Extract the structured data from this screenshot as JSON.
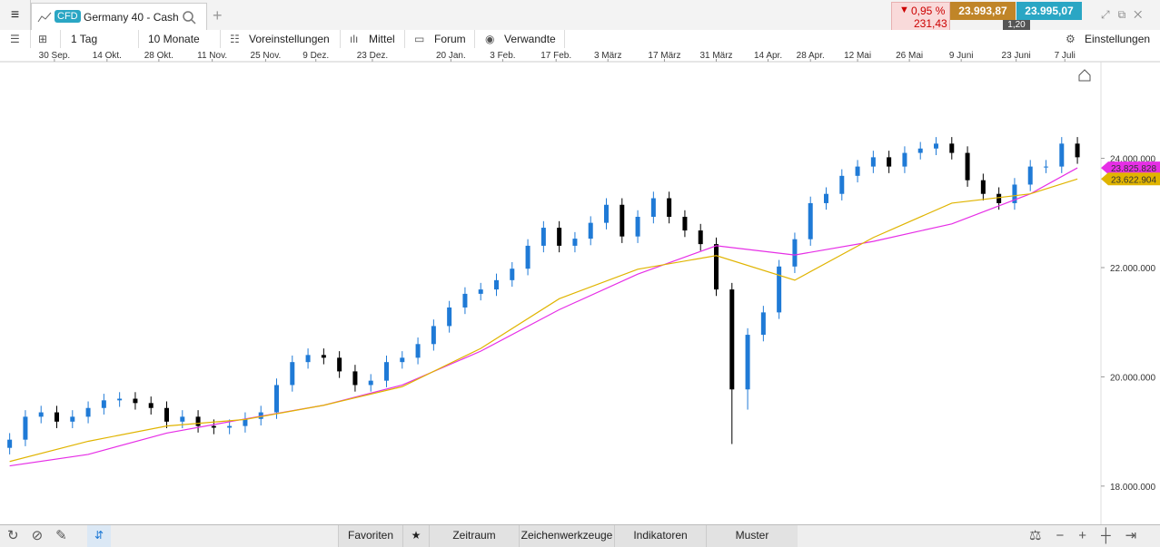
{
  "header": {
    "badge": "CFD",
    "instrument": "Germany 40 - Cash",
    "change_pct": "0,95 %",
    "change_abs": "231,43",
    "bid": "23.993,87",
    "ask": "23.995,07",
    "spread": "1,20"
  },
  "toolbar": {
    "interval": "1 Tag",
    "range": "10 Monate",
    "presets": "Voreinstellungen",
    "average": "Mittel",
    "forum": "Forum",
    "related": "Verwandte",
    "settings": "Einstellungen"
  },
  "footer": {
    "favorites": "Favoriten",
    "period": "Zeitraum",
    "drawing_tools": "Zeichenwerkzeuge",
    "indicators": "Indikatoren",
    "patterns": "Muster"
  },
  "chart_data": {
    "type": "candlestick",
    "up_color": "#1f7ad6",
    "down_color": "#000000",
    "grid": false,
    "xlim": [
      -0.5,
      69.5
    ],
    "xticks": [
      {
        "value": 2.85,
        "label": "30 Sep."
      },
      {
        "value": 6.2,
        "label": "14 Okt."
      },
      {
        "value": 9.5,
        "label": "28 Okt."
      },
      {
        "value": 12.9,
        "label": "11 Nov."
      },
      {
        "value": 16.3,
        "label": "25 Nov."
      },
      {
        "value": 19.5,
        "label": "9 Dez."
      },
      {
        "value": 23.1,
        "label": "23 Dez."
      },
      {
        "value": 28.1,
        "label": "20 Jan."
      },
      {
        "value": 31.4,
        "label": "3 Feb."
      },
      {
        "value": 34.8,
        "label": "17 Feb."
      },
      {
        "value": 38.1,
        "label": "3 März"
      },
      {
        "value": 41.7,
        "label": "17 März"
      },
      {
        "value": 45.0,
        "label": "31 März"
      },
      {
        "value": 48.3,
        "label": "14 Apr."
      },
      {
        "value": 51.0,
        "label": "28 Apr."
      },
      {
        "value": 54.0,
        "label": "12 Mai"
      },
      {
        "value": 57.3,
        "label": "26 Mai"
      },
      {
        "value": 60.6,
        "label": "9 Juni"
      },
      {
        "value": 64.1,
        "label": "23 Juni"
      },
      {
        "value": 67.2,
        "label": "7 Juli"
      }
    ],
    "ylim": [
      17300000,
      25770000
    ],
    "yticks": [
      {
        "value": 18000000,
        "label": "18.000.000"
      },
      {
        "value": 20000000,
        "label": "20.000.000"
      },
      {
        "value": 22000000,
        "label": "22.000.000"
      },
      {
        "value": 24000000,
        "label": "24.000.000"
      }
    ],
    "open": [
      18700000,
      18850000,
      19270000,
      19350000,
      19180000,
      19270000,
      19430000,
      19570000,
      19600000,
      19520000,
      19430000,
      19180000,
      19270000,
      19100000,
      19070000,
      19100000,
      19230000,
      19350000,
      19850000,
      20270000,
      20400000,
      20350000,
      20100000,
      19850000,
      19930000,
      20270000,
      20350000,
      20600000,
      20930000,
      21270000,
      21520000,
      21600000,
      21770000,
      21980000,
      22400000,
      22730000,
      22400000,
      22530000,
      22820000,
      23150000,
      22570000,
      22930000,
      23270000,
      22930000,
      22680000,
      22430000,
      21600000,
      19770000,
      20770000,
      21180000,
      22020000,
      22520000,
      23180000,
      23350000,
      23680000,
      23850000,
      24020000,
      23850000,
      24100000,
      24180000,
      24270000,
      24100000,
      23600000,
      23350000,
      23180000,
      23520000,
      23850000,
      23850000,
      24270000
    ],
    "high": [
      18970000,
      19390000,
      19470000,
      19470000,
      19390000,
      19550000,
      19690000,
      19720000,
      19720000,
      19640000,
      19550000,
      19390000,
      19390000,
      19220000,
      19220000,
      19350000,
      19470000,
      19970000,
      20390000,
      20520000,
      20520000,
      20470000,
      20220000,
      20050000,
      20390000,
      20470000,
      20720000,
      21050000,
      21390000,
      21640000,
      21720000,
      21890000,
      22100000,
      22520000,
      22850000,
      22850000,
      22650000,
      22940000,
      23270000,
      23270000,
      23050000,
      23390000,
      23390000,
      23050000,
      22800000,
      22550000,
      21720000,
      20890000,
      21300000,
      22140000,
      22640000,
      23300000,
      23470000,
      23800000,
      23970000,
      24140000,
      24140000,
      24220000,
      24300000,
      24390000,
      24390000,
      24220000,
      23720000,
      23470000,
      23640000,
      23970000,
      23970000,
      24390000,
      24390000
    ],
    "low": [
      18580000,
      18730000,
      19150000,
      19060000,
      19060000,
      19150000,
      19310000,
      19450000,
      19400000,
      19310000,
      19060000,
      19060000,
      18980000,
      18950000,
      18950000,
      18980000,
      19110000,
      19230000,
      19730000,
      20150000,
      20230000,
      19980000,
      19730000,
      19730000,
      19810000,
      20150000,
      20230000,
      20480000,
      20810000,
      21150000,
      21400000,
      21480000,
      21650000,
      21860000,
      22280000,
      22280000,
      22280000,
      22410000,
      22700000,
      22450000,
      22450000,
      22810000,
      22810000,
      22560000,
      22310000,
      21480000,
      18770000,
      19400000,
      20650000,
      21060000,
      21900000,
      22400000,
      23060000,
      23230000,
      23560000,
      23730000,
      23730000,
      23730000,
      23980000,
      24060000,
      23980000,
      23480000,
      23230000,
      23060000,
      23060000,
      23400000,
      23730000,
      23730000,
      23900000
    ],
    "close": [
      18850000,
      19270000,
      19350000,
      19180000,
      19270000,
      19430000,
      19570000,
      19600000,
      19520000,
      19430000,
      19180000,
      19270000,
      19100000,
      19070000,
      19100000,
      19230000,
      19350000,
      19850000,
      20270000,
      20400000,
      20350000,
      20100000,
      19850000,
      19930000,
      20270000,
      20350000,
      20600000,
      20930000,
      21270000,
      21520000,
      21600000,
      21770000,
      21980000,
      22400000,
      22730000,
      22400000,
      22530000,
      22820000,
      23150000,
      22570000,
      22930000,
      23270000,
      22930000,
      22680000,
      22430000,
      21600000,
      19770000,
      20770000,
      21180000,
      22020000,
      22520000,
      23180000,
      23350000,
      23680000,
      23850000,
      24020000,
      23850000,
      24100000,
      24180000,
      24270000,
      24100000,
      23600000,
      23350000,
      23180000,
      23520000,
      23850000,
      23850000,
      24270000,
      24020000
    ],
    "lines": [
      {
        "color": "#e62ee6",
        "x": [
          0,
          5,
          10,
          15,
          20,
          25,
          30,
          35,
          40,
          45,
          50,
          55,
          60,
          65,
          68
        ],
        "values": [
          18370000,
          18580000,
          18970000,
          19230000,
          19480000,
          19850000,
          20470000,
          21230000,
          21880000,
          22400000,
          22230000,
          22480000,
          22800000,
          23350000,
          23825828
        ],
        "tag": {
          "value": 23825828,
          "label": "23.825.828"
        }
      },
      {
        "color": "#e0b400",
        "x": [
          0,
          5,
          10,
          15,
          20,
          25,
          30,
          35,
          40,
          45,
          50,
          55,
          60,
          65,
          68
        ],
        "values": [
          18450000,
          18820000,
          19100000,
          19220000,
          19480000,
          19820000,
          20520000,
          21430000,
          21970000,
          22220000,
          21770000,
          22550000,
          23180000,
          23350000,
          23622904
        ],
        "tag": {
          "value": 23622904,
          "label": "23.622.904"
        }
      }
    ]
  }
}
